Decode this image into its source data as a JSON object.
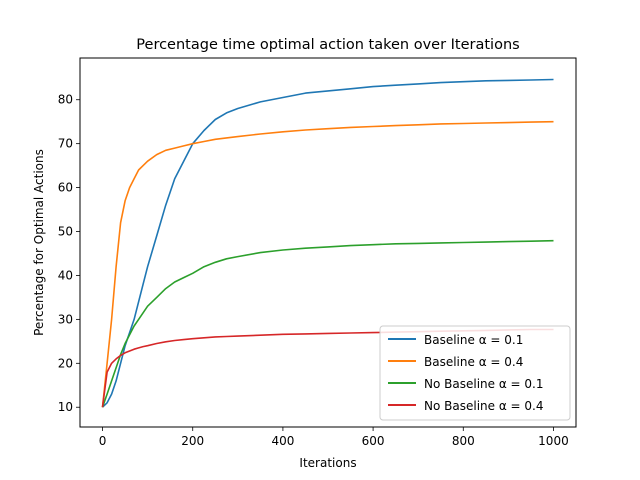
{
  "chart_data": {
    "type": "line",
    "title": "Percentage time optimal action taken over Iterations",
    "xlabel": "Iterations",
    "ylabel": "Percentage for Optimal Actions",
    "xlim": [
      -50,
      1050
    ],
    "ylim": [
      5.5,
      89.5
    ],
    "xticks": [
      0,
      200,
      400,
      600,
      800,
      1000
    ],
    "yticks": [
      10,
      20,
      30,
      40,
      50,
      60,
      70,
      80
    ],
    "grid": false,
    "legend_position": "lower-right",
    "x": [
      0,
      10,
      20,
      30,
      40,
      50,
      60,
      70,
      80,
      90,
      100,
      120,
      140,
      160,
      180,
      200,
      225,
      250,
      275,
      300,
      350,
      400,
      450,
      500,
      550,
      600,
      650,
      700,
      750,
      800,
      850,
      900,
      950,
      1000
    ],
    "series": [
      {
        "name": "Baseline α = 0.1",
        "color": "#1f77b4",
        "values": [
          10,
          11,
          13,
          16,
          20,
          24,
          27,
          30,
          34,
          38,
          42,
          49,
          56,
          62,
          66,
          70,
          73,
          75.5,
          77,
          78,
          79.5,
          80.5,
          81.5,
          82,
          82.5,
          83,
          83.3,
          83.6,
          83.9,
          84.1,
          84.3,
          84.4,
          84.5,
          84.6
        ]
      },
      {
        "name": "Baseline α = 0.4",
        "color": "#ff7f0e",
        "values": [
          10,
          20,
          30,
          42,
          52,
          57,
          60,
          62,
          64,
          65,
          66,
          67.5,
          68.5,
          69,
          69.5,
          70,
          70.5,
          71,
          71.3,
          71.6,
          72.2,
          72.7,
          73.1,
          73.4,
          73.7,
          73.9,
          74.1,
          74.3,
          74.5,
          74.6,
          74.7,
          74.8,
          74.9,
          75
        ]
      },
      {
        "name": "No Baseline α = 0.1",
        "color": "#2ca02c",
        "values": [
          10,
          13,
          16,
          19,
          22,
          24.5,
          26.5,
          28.5,
          30,
          31.5,
          33,
          35,
          37,
          38.5,
          39.5,
          40.5,
          42,
          43,
          43.8,
          44.3,
          45.2,
          45.8,
          46.2,
          46.5,
          46.8,
          47,
          47.2,
          47.3,
          47.4,
          47.5,
          47.6,
          47.7,
          47.8,
          47.9
        ]
      },
      {
        "name": "No Baseline α = 0.4",
        "color": "#d62728",
        "values": [
          10,
          18,
          20,
          21,
          21.8,
          22.4,
          22.8,
          23.2,
          23.5,
          23.8,
          24,
          24.5,
          24.9,
          25.2,
          25.4,
          25.6,
          25.8,
          26,
          26.1,
          26.2,
          26.4,
          26.6,
          26.7,
          26.8,
          26.9,
          27,
          27.1,
          27.2,
          27.3,
          27.4,
          27.5,
          27.6,
          27.7,
          27.7
        ]
      }
    ]
  }
}
